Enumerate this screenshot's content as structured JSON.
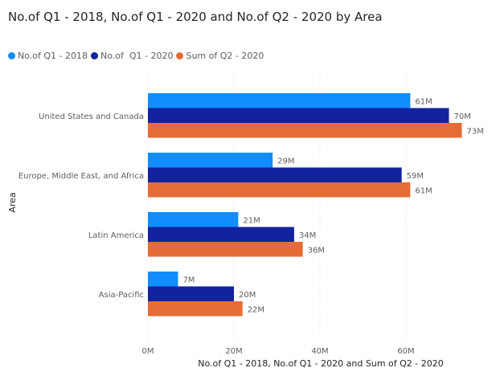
{
  "chart_data": {
    "type": "bar",
    "orientation": "horizontal",
    "title": "No.of Q1 - 2018, No.of Q1 - 2020 and No.of Q2 - 2020 by Area",
    "xlabel": "No.of Q1 - 2018, No.of Q1 - 2020 and Sum of Q2 - 2020",
    "ylabel": "Area",
    "xlim": [
      0,
      70
    ],
    "x_ticks": [
      0,
      20,
      40,
      60
    ],
    "x_tick_labels": [
      "0M",
      "20M",
      "40M",
      "60M"
    ],
    "grid": true,
    "legend_position": "top-left",
    "categories": [
      "United States and Canada",
      "Europe, Middle East, and Africa",
      "Latin America",
      "Asia-Pacific"
    ],
    "series": [
      {
        "name": "No.of Q1 - 2018",
        "color": "#118DFF",
        "values": [
          61,
          29,
          21,
          7
        ],
        "labels": [
          "61M",
          "29M",
          "21M",
          "7M"
        ]
      },
      {
        "name": "No.of  Q1 - 2020",
        "color": "#12239E",
        "values": [
          70,
          59,
          34,
          20
        ],
        "labels": [
          "70M",
          "59M",
          "34M",
          "20M"
        ]
      },
      {
        "name": "Sum of Q2 - 2020",
        "color": "#E66C37",
        "values": [
          73,
          61,
          36,
          22
        ],
        "labels": [
          "73M",
          "61M",
          "36M",
          "22M"
        ]
      }
    ]
  }
}
